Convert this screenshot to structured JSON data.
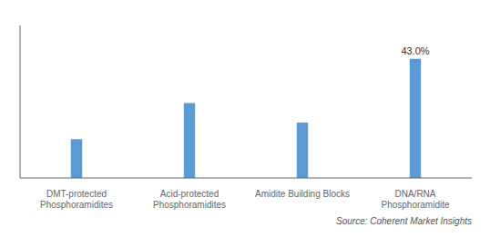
{
  "chart_data": {
    "type": "bar",
    "categories": [
      "DMT-protected\nPhosphoramidites",
      "Acid-protected\nPhosphoramidites",
      "Amidite Building Blocks",
      "DNA/RNA\nPhosphoramidite"
    ],
    "values": [
      14.0,
      27.0,
      20.0,
      43.0
    ],
    "color": "#5B9BD5",
    "ylim": [
      0,
      55
    ],
    "grid": false,
    "tick_labels": "x",
    "annotations": [
      {
        "text": "43.0%",
        "x": "DNA/RNA\nPhosphoramidite",
        "y": 43.0
      }
    ],
    "source": "Source: Coherent Market Insights"
  }
}
